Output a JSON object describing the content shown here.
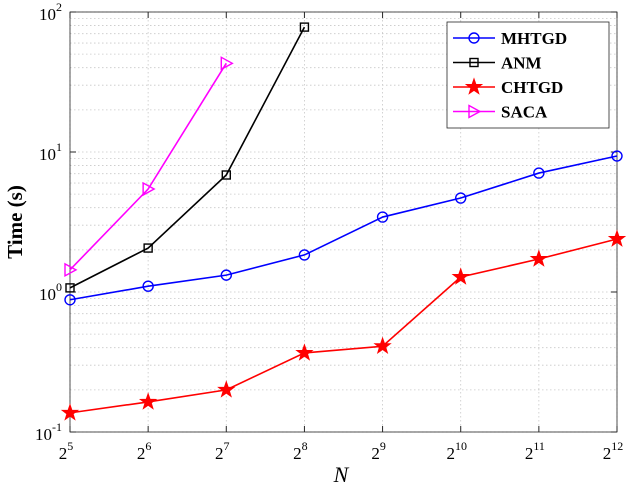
{
  "chart_data": {
    "type": "line",
    "xlabel": "N",
    "ylabel": "Time (s)",
    "x": [
      32,
      64,
      128,
      256,
      512,
      1024,
      2048,
      4096
    ],
    "xscale": "log",
    "yscale": "log",
    "xlim": [
      32,
      4096
    ],
    "xticks": [
      {
        "value": 32,
        "label": "2",
        "exponent": "5"
      },
      {
        "value": 64,
        "label": "2",
        "exponent": "6"
      },
      {
        "value": 128,
        "label": "2",
        "exponent": "7"
      },
      {
        "value": 256,
        "label": "2",
        "exponent": "8"
      },
      {
        "value": 512,
        "label": "2",
        "exponent": "9"
      },
      {
        "value": 1024,
        "label": "2",
        "exponent": "10"
      },
      {
        "value": 2048,
        "label": "2",
        "exponent": "11"
      },
      {
        "value": 4096,
        "label": "2",
        "exponent": "12"
      }
    ],
    "ylim": [
      0.1,
      100
    ],
    "yticks": [
      {
        "value": 0.1,
        "label": "10",
        "exponent": "-1"
      },
      {
        "value": 1,
        "label": "10",
        "exponent": "0"
      },
      {
        "value": 10,
        "label": "10",
        "exponent": "1"
      },
      {
        "value": 100,
        "label": "10",
        "exponent": "2"
      }
    ],
    "grid": true,
    "legend": "northeast",
    "series": [
      {
        "name": "MHTGD",
        "color": "#0000ff",
        "marker": "circle",
        "values": [
          0.88,
          1.1,
          1.32,
          1.84,
          3.43,
          4.69,
          7.07,
          9.36
        ]
      },
      {
        "name": "ANM",
        "color": "#000000",
        "marker": "square",
        "values": [
          1.07,
          2.06,
          6.85,
          78,
          null,
          null,
          null,
          null
        ]
      },
      {
        "name": "CHTGD",
        "color": "#ff0000",
        "marker": "star",
        "values": [
          0.137,
          0.164,
          0.2,
          0.367,
          0.41,
          1.28,
          1.72,
          2.39
        ]
      },
      {
        "name": "SACA",
        "color": "#ff00ff",
        "marker": "triangle-right",
        "values": [
          1.44,
          5.44,
          43,
          null,
          null,
          null,
          null,
          null
        ]
      }
    ]
  }
}
